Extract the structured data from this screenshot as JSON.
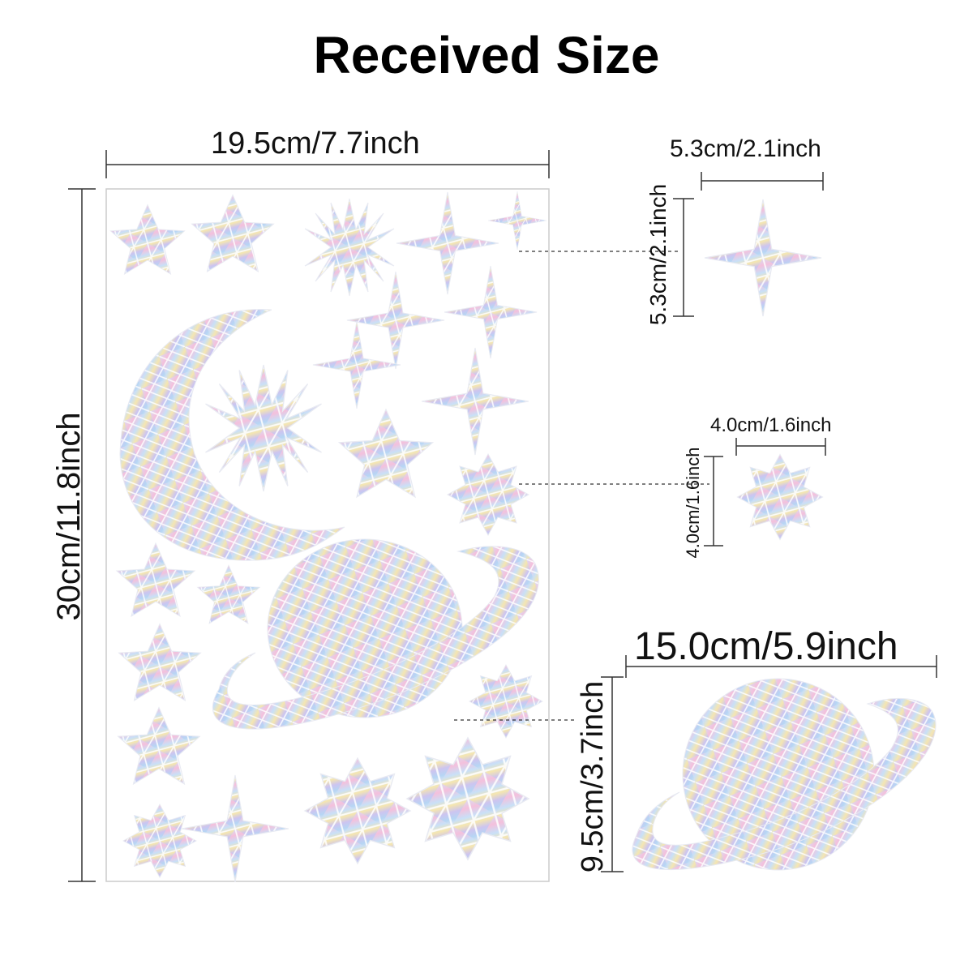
{
  "title": "Received Size",
  "sheet": {
    "width_label": "19.5cm/7.7inch",
    "height_label": "30cm/11.8inch"
  },
  "items": [
    {
      "name": "four-point-star",
      "width_label": "5.3cm/2.1inch",
      "height_label": "5.3cm/2.1inch"
    },
    {
      "name": "eight-point-star",
      "width_label": "4.0cm/1.6inch",
      "height_label": "4.0cm/1.6inch"
    },
    {
      "name": "planet",
      "width_label": "15.0cm/5.9inch",
      "height_label": "9.5cm/3.7inch"
    }
  ],
  "colors": {
    "background": "#ffffff",
    "text": "#111111",
    "sheet_border": "#cccccc",
    "holo_base": "#dfe3ee",
    "holo_pink": "#f4b8d6",
    "holo_blue": "#a9cdf2",
    "holo_yellow": "#f5e3a8",
    "holo_lavender": "#c9c0ef"
  }
}
